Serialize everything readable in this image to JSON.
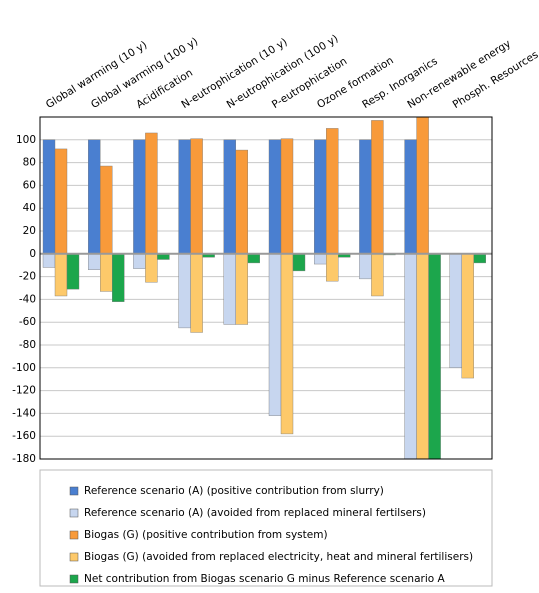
{
  "chart_data": {
    "type": "bar",
    "categories": [
      "Global warming (10 y)",
      "Global warming (100 y)",
      "Acidification",
      "N-eutrophication (10 y)",
      "N-eutrophication (100 y)",
      "P-eutrophication",
      "Ozone formation",
      "Resp. Inorganics",
      "Non-renewable energy",
      "Phosph. Resources"
    ],
    "series": [
      {
        "name": "Reference scenario (A) (positive contribution from slurry)",
        "color": "#4a7fd0",
        "values": [
          100,
          100,
          100,
          100,
          100,
          100,
          100,
          100,
          100,
          0
        ]
      },
      {
        "name": "Reference scenario (A) (avoided from replaced mineral fertilsers)",
        "color": "#c7d6ef",
        "values": [
          -12,
          -14,
          -13,
          -65,
          -62,
          -142,
          -9,
          -22,
          -180,
          -100
        ]
      },
      {
        "name": "Biogas (G) (positive contribution from system)",
        "color": "#f89a3a",
        "values": [
          92,
          77,
          106,
          101,
          91,
          101,
          110,
          117,
          120,
          0
        ]
      },
      {
        "name": "Biogas (G) (avoided from replaced electricity, heat and mineral fertilisers)",
        "color": "#fdc96a",
        "values": [
          -37,
          -33,
          -25,
          -69,
          -62,
          -158,
          -24,
          -37,
          -180,
          -109
        ]
      },
      {
        "name": "Net contribution from Biogas scenario G minus Reference scenario A",
        "color": "#1ca64c",
        "values": [
          -31,
          -42,
          -5,
          -3,
          -8,
          -15,
          -3,
          -1,
          -180,
          -8
        ]
      }
    ],
    "ylim": [
      -180,
      120
    ],
    "yticks": [
      -180,
      -160,
      -140,
      -120,
      -100,
      -80,
      -60,
      -40,
      -20,
      0,
      20,
      40,
      60,
      80,
      100
    ],
    "grid": true
  }
}
